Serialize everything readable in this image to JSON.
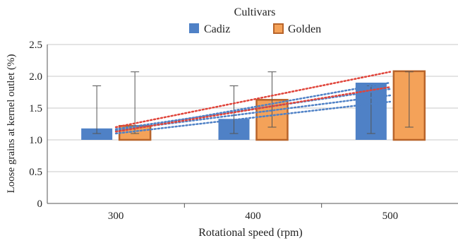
{
  "chart_data": {
    "type": "bar",
    "legend_title": "Cultivars",
    "legend_position": "top",
    "categories": [
      "300",
      "400",
      "500"
    ],
    "series": [
      {
        "name": "Cadiz",
        "values": [
          1.18,
          1.33,
          1.9
        ],
        "error_low": [
          1.1,
          1.1,
          1.1
        ],
        "error_high": [
          1.85,
          1.85,
          1.85
        ]
      },
      {
        "name": "Golden",
        "values": [
          1.22,
          1.63,
          2.08
        ],
        "error_low": [
          1.1,
          1.2,
          1.2
        ],
        "error_high": [
          2.07,
          2.07,
          2.07
        ]
      }
    ],
    "bar_baseline": 1.0,
    "xlabel": "Rotational speed (rpm)",
    "ylabel": "Loose grains at kernel outlet (%)",
    "ylim": [
      0,
      2.5
    ],
    "yticks": [
      "0",
      "0.5",
      "1.0",
      "1.5",
      "2.0",
      "2.5"
    ],
    "grid": true,
    "trendlines": [
      {
        "series": "Cadiz",
        "from": 1.1,
        "to": 1.6
      },
      {
        "series": "Cadiz",
        "from": 1.15,
        "to": 1.7
      },
      {
        "series": "Cadiz",
        "from": 1.17,
        "to": 1.8
      },
      {
        "series": "Cadiz",
        "from": 1.13,
        "to": 1.9
      },
      {
        "series": "Golden",
        "from": 1.2,
        "to": 2.07
      },
      {
        "series": "Golden",
        "from": 1.13,
        "to": 1.83
      }
    ],
    "colors": {
      "Cadiz": "#4f81c6",
      "Golden": "#f4a259",
      "Golden_border": "#b8642a",
      "Cadiz_trend": "#4f81c6",
      "Golden_trend": "#e0443a",
      "error_bar": "#555555",
      "grid": "#c8c8c8",
      "axis": "#555555"
    }
  }
}
